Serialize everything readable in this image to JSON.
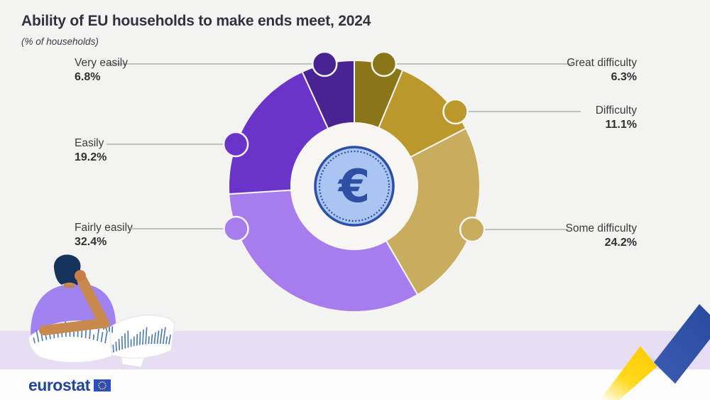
{
  "header": {
    "title": "Ability of EU households to make ends meet, 2024",
    "subtitle": "(% of households)"
  },
  "chart_data": {
    "type": "pie",
    "subtype": "donut",
    "title": "Ability of EU households to make ends meet, 2024",
    "unit": "% of households",
    "direction": "clockwise",
    "start_angle_deg": 0,
    "center_symbol": "€",
    "slices": [
      {
        "label": "Great difficulty",
        "value": 6.3,
        "color": "#8a7618",
        "side": "right"
      },
      {
        "label": "Difficulty",
        "value": 11.1,
        "color": "#bb982b",
        "side": "right"
      },
      {
        "label": "Some difficulty",
        "value": 24.2,
        "color": "#c9ad5f",
        "side": "right"
      },
      {
        "label": "Fairly easily",
        "value": 32.4,
        "color": "#a77ced",
        "side": "left"
      },
      {
        "label": "Easily",
        "value": 19.2,
        "color": "#6b34c9",
        "side": "left"
      },
      {
        "label": "Very easily",
        "value": 6.8,
        "color": "#4a2392",
        "side": "left"
      }
    ],
    "colors": {
      "separator": "#f6f5f2",
      "leader_line": "#8d8d8d",
      "hole_fill": "#f7f6f3",
      "coin_fill": "#aac5f1",
      "coin_border": "#2d50a4"
    }
  },
  "footer": {
    "brand": "eurostat"
  }
}
